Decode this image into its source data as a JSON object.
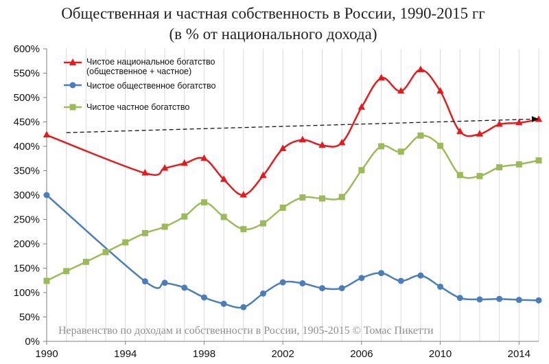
{
  "chart_data": {
    "type": "line",
    "title": "Общественная и частная собственность в России, 1990-2015 гг",
    "subtitle": "(в % от национального дохода)",
    "xlabel": "",
    "ylabel": "",
    "xlim": [
      1990,
      2015
    ],
    "ylim": [
      0,
      600
    ],
    "x_ticks": [
      1990,
      1994,
      1998,
      2002,
      2006,
      2010,
      2014
    ],
    "y_ticks": [
      0,
      50,
      100,
      150,
      200,
      250,
      300,
      350,
      400,
      450,
      500,
      550,
      600
    ],
    "y_tick_labels": [
      "0%",
      "50%",
      "100%",
      "150%",
      "200%",
      "250%",
      "300%",
      "350%",
      "400%",
      "450%",
      "500%",
      "550%",
      "600%"
    ],
    "grid": "vertical",
    "legend_position": "top-left",
    "series": [
      {
        "name": "Чистое национальное богатство",
        "name_line2": "(общественное + частное)",
        "color": "#e8191b",
        "marker": "triangle",
        "x": [
          1990,
          1995,
          1996,
          1997,
          1998,
          1999,
          2000,
          2001,
          2002,
          2003,
          2004,
          2005,
          2006,
          2007,
          2008,
          2009,
          2010,
          2011,
          2012,
          2013,
          2014,
          2015
        ],
        "values": [
          423,
          345,
          355,
          365,
          375,
          332,
          300,
          340,
          395,
          413,
          402,
          407,
          480,
          540,
          513,
          557,
          513,
          430,
          425,
          445,
          448,
          455
        ]
      },
      {
        "name": "Чистое общественное богатство",
        "color": "#4a7ebb",
        "marker": "circle",
        "x": [
          1990,
          1995,
          1996,
          1997,
          1998,
          1999,
          2000,
          2001,
          2002,
          2003,
          2004,
          2005,
          2006,
          2007,
          2008,
          2009,
          2010,
          2011,
          2012,
          2013,
          2014,
          2015
        ],
        "values": [
          300,
          123,
          120,
          110,
          90,
          77,
          70,
          98,
          121,
          119,
          109,
          109,
          130,
          140,
          124,
          135,
          112,
          89,
          86,
          87,
          85,
          84
        ]
      },
      {
        "name": "Чистое частное богатство",
        "color": "#9bbb59",
        "marker": "square",
        "x": [
          1990,
          1991,
          1992,
          1993,
          1994,
          1995,
          1996,
          1997,
          1998,
          1999,
          2000,
          2001,
          2002,
          2003,
          2004,
          2005,
          2006,
          2007,
          2008,
          2009,
          2010,
          2011,
          2012,
          2013,
          2014,
          2015
        ],
        "values": [
          124,
          144,
          163,
          183,
          203,
          222,
          235,
          256,
          285,
          255,
          230,
          242,
          274,
          295,
          293,
          296,
          351,
          400,
          389,
          422,
          401,
          341,
          339,
          357,
          363,
          371
        ]
      }
    ],
    "trend_arrow": {
      "from": [
        1991,
        428
      ],
      "to": [
        2015,
        456
      ],
      "style": "dashed",
      "color": "#111111"
    },
    "watermark": "Неравенство по доходам и собственности в России, 1905-2015 © Томас Пикетти"
  }
}
